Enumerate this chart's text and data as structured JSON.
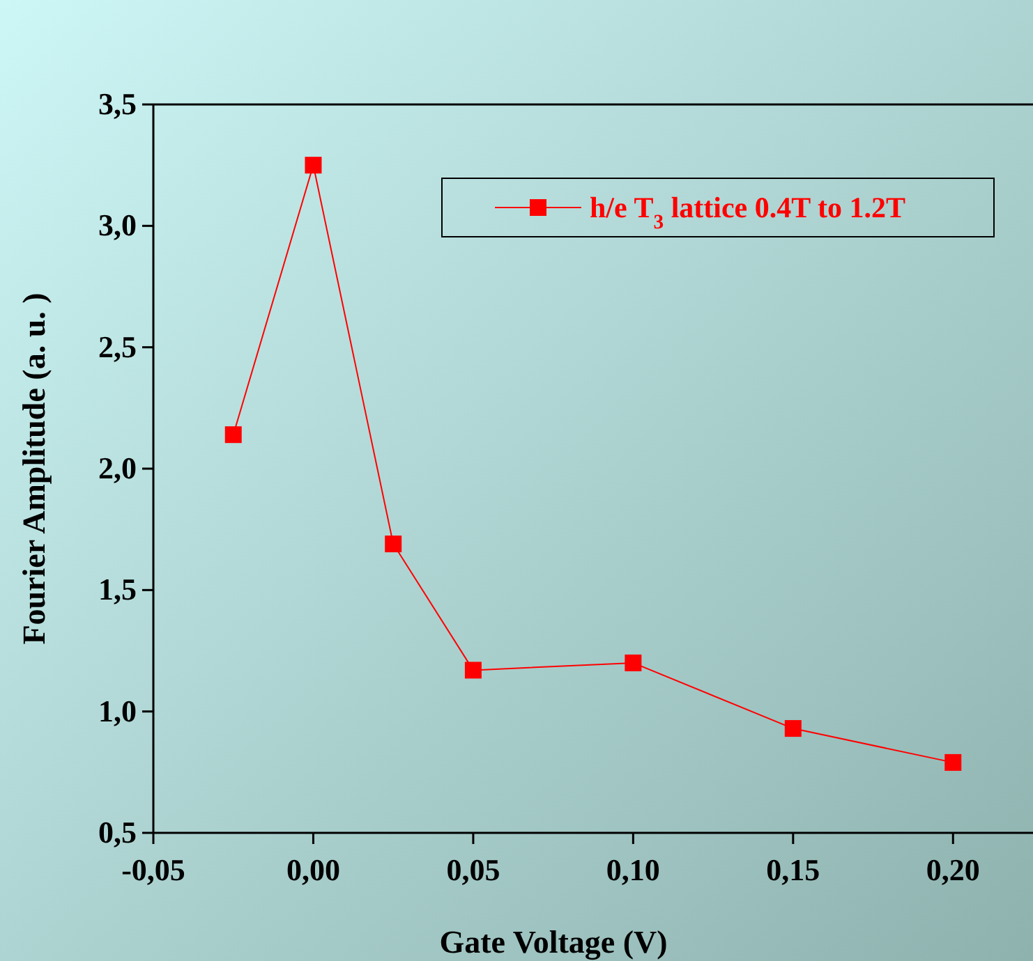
{
  "chart_data": {
    "type": "line",
    "xlabel": "Gate Voltage (V)",
    "ylabel": "Fourier Amplitude (a. u. )",
    "x": [
      -0.025,
      0,
      0.025,
      0.05,
      0.1,
      0.15,
      0.2
    ],
    "series": [
      {
        "name": "h/e T$_{3}$ lattice  0.4T to 1.2T",
        "color": "#ff0000",
        "values": [
          2.14,
          3.25,
          1.69,
          1.17,
          1.2,
          0.93,
          0.79
        ]
      }
    ],
    "xlim": [
      -0.05,
      0.225
    ],
    "xticks": [
      {
        "value": -0.05,
        "label": "-0,05"
      },
      {
        "value": 0,
        "label": "0,00"
      },
      {
        "value": 0.05,
        "label": "0,05"
      },
      {
        "value": 0.1,
        "label": "0,10"
      },
      {
        "value": 0.15,
        "label": "0,15"
      },
      {
        "value": 0.2,
        "label": "0,20"
      }
    ],
    "ylim": [
      0.5,
      3.5
    ],
    "yticks": [
      {
        "value": 0.5,
        "label": "0,5"
      },
      {
        "value": 1,
        "label": "1,0"
      },
      {
        "value": 1.5,
        "label": "1,5"
      },
      {
        "value": 2,
        "label": "2,0"
      },
      {
        "value": 2.5,
        "label": "2,5"
      },
      {
        "value": 3,
        "label": "3,0"
      },
      {
        "value": 3.5,
        "label": "3,5"
      }
    ],
    "legend": "top right",
    "marker": "square",
    "line_style": "solid",
    "grid": false
  }
}
